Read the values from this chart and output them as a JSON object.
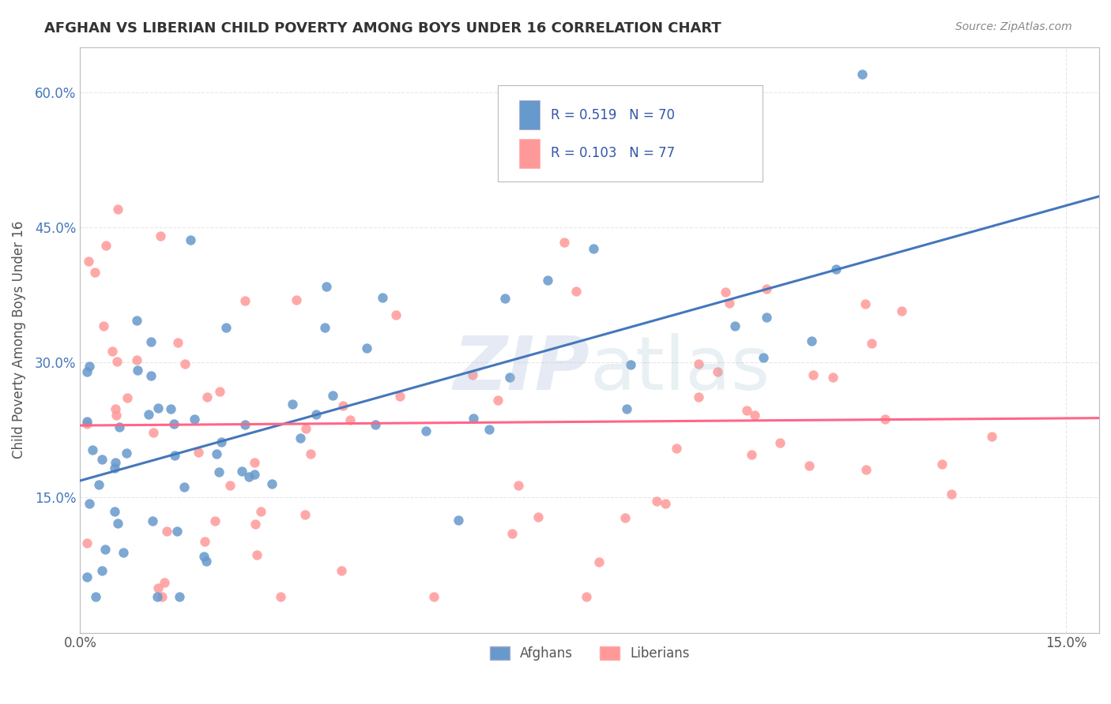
{
  "title": "AFGHAN VS LIBERIAN CHILD POVERTY AMONG BOYS UNDER 16 CORRELATION CHART",
  "source": "Source: ZipAtlas.com",
  "ylabel_label": "Child Poverty Among Boys Under 16",
  "afghans_R": 0.519,
  "afghans_N": 70,
  "liberians_R": 0.103,
  "liberians_N": 77,
  "afghan_color": "#6699CC",
  "liberian_color": "#FF9999",
  "afghan_line_color": "#4477BB",
  "liberian_line_color": "#FF6688",
  "background_color": "#FFFFFF",
  "grid_color": "#DDDDDD",
  "xlim": [
    0.0,
    0.155
  ],
  "ylim": [
    0.0,
    0.65
  ],
  "title_color": "#333333",
  "legend_text_color": "#3355AA"
}
